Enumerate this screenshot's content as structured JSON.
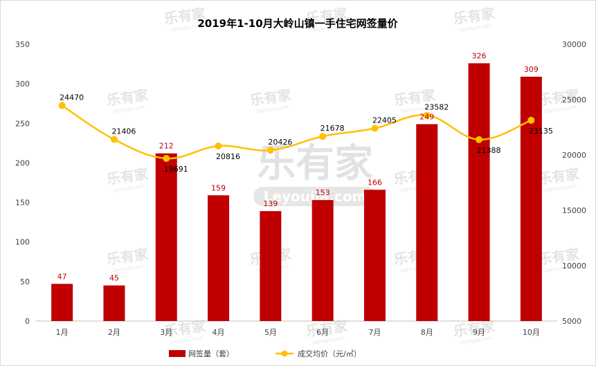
{
  "chart_data": {
    "type": "bar",
    "title": "2019年1-10月大岭山镇一手住宅网签量价",
    "categories": [
      "1月",
      "2月",
      "3月",
      "4月",
      "5月",
      "6月",
      "7月",
      "8月",
      "9月",
      "10月"
    ],
    "series": [
      {
        "name": "网签量（套）",
        "type": "bar",
        "axis": "left",
        "color": "#c00000",
        "values": [
          47,
          45,
          212,
          159,
          139,
          153,
          166,
          249,
          326,
          309
        ]
      },
      {
        "name": "成交均价（元/㎡）",
        "type": "line",
        "axis": "right",
        "color": "#ffc000",
        "values": [
          24470,
          21406,
          19691,
          20816,
          20426,
          21678,
          22405,
          23582,
          21388,
          23135
        ]
      }
    ],
    "yleft": {
      "min": 0,
      "max": 350,
      "ticks": [
        0,
        50,
        100,
        150,
        200,
        250,
        300,
        350
      ]
    },
    "yright": {
      "min": 5000,
      "max": 30000,
      "ticks": [
        5000,
        10000,
        15000,
        20000,
        25000,
        30000
      ]
    },
    "legend": "bottom"
  },
  "watermark": {
    "brand": "乐有家",
    "domain": "Leyoujia.com",
    "small": "Leyoujia.com"
  }
}
